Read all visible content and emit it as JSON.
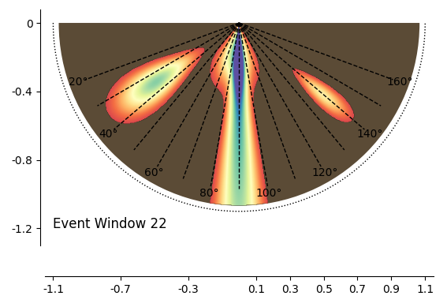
{
  "chart_data": {
    "type": "polar_fan",
    "annotation": "Event Window 22",
    "radius": 1.1,
    "angle_labels": [
      {
        "value": 20,
        "label": "20°"
      },
      {
        "value": 40,
        "label": "40°"
      },
      {
        "value": 60,
        "label": "60°"
      },
      {
        "value": 80,
        "label": "80°"
      },
      {
        "value": 100,
        "label": "100°"
      },
      {
        "value": 120,
        "label": "120°"
      },
      {
        "value": 140,
        "label": "140°"
      },
      {
        "value": 160,
        "label": "160°"
      }
    ],
    "xlim": [
      -1.15,
      1.15
    ],
    "xticks": [
      -1.1,
      -0.7,
      -0.3,
      0.1,
      0.3,
      0.5,
      0.7,
      0.9,
      1.1
    ],
    "ylim": [
      -1.3,
      0.08
    ],
    "yticks": [
      0,
      -0.4,
      -0.8,
      -1.2
    ]
  }
}
